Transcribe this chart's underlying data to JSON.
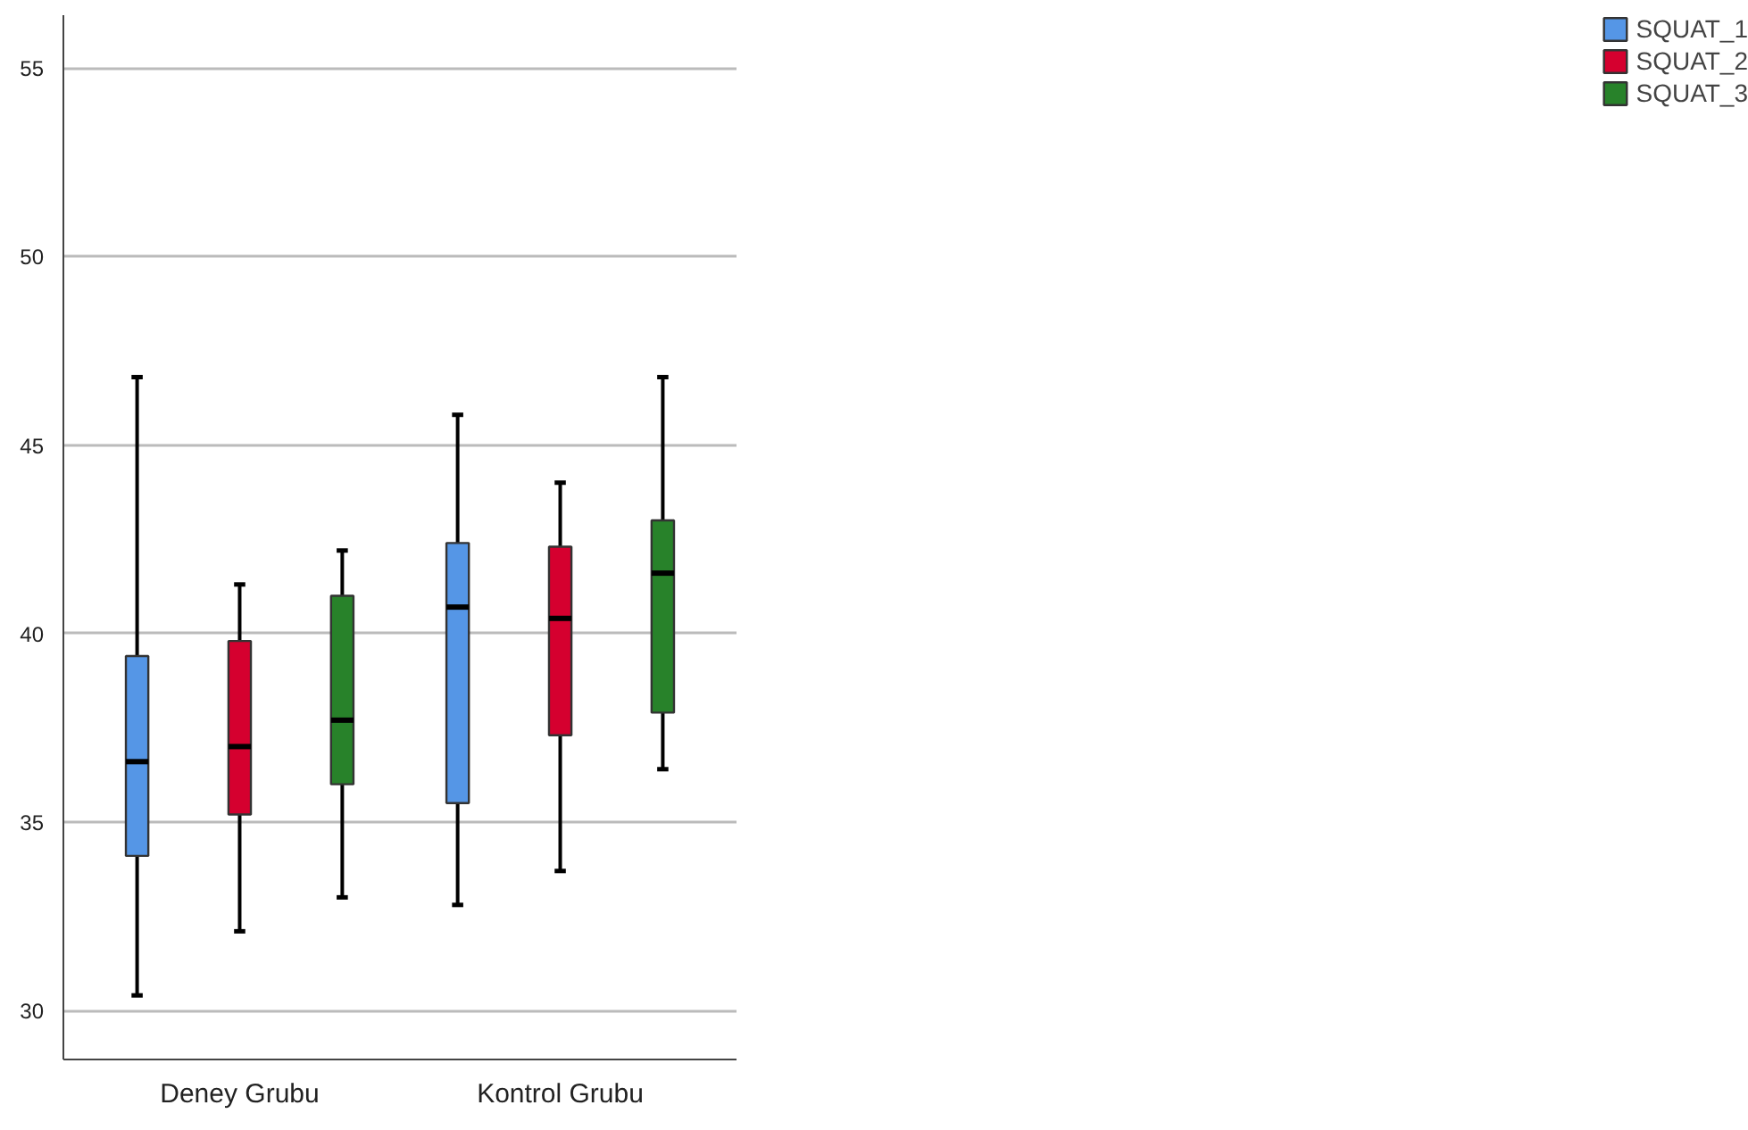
{
  "chart_data": {
    "type": "box",
    "categories": [
      "Deney Grubu",
      "Kontrol Grubu"
    ],
    "series": [
      {
        "name": "SQUAT_1",
        "color": "#5596e6",
        "boxes": [
          {
            "low": 30.4,
            "q1": 34.1,
            "median": 36.6,
            "q3": 39.4,
            "high": 46.8
          },
          {
            "low": 32.8,
            "q1": 35.5,
            "median": 40.7,
            "q3": 42.4,
            "high": 45.8
          }
        ]
      },
      {
        "name": "SQUAT_2",
        "color": "#d5002f",
        "boxes": [
          {
            "low": 32.1,
            "q1": 35.2,
            "median": 37.0,
            "q3": 39.8,
            "high": 41.3
          },
          {
            "low": 33.7,
            "q1": 37.3,
            "median": 40.4,
            "q3": 42.3,
            "high": 44.0
          }
        ]
      },
      {
        "name": "SQUAT_3",
        "color": "#28822a",
        "boxes": [
          {
            "low": 33.0,
            "q1": 36.0,
            "median": 37.7,
            "q3": 41.0,
            "high": 42.2
          },
          {
            "low": 36.4,
            "q1": 37.9,
            "median": 41.6,
            "q3": 43.0,
            "high": 46.8
          }
        ]
      }
    ],
    "ylim": [
      28.7,
      56.4
    ],
    "yticks": [
      30,
      35,
      40,
      45,
      50,
      55
    ],
    "grid": "y",
    "legend": "top right"
  }
}
